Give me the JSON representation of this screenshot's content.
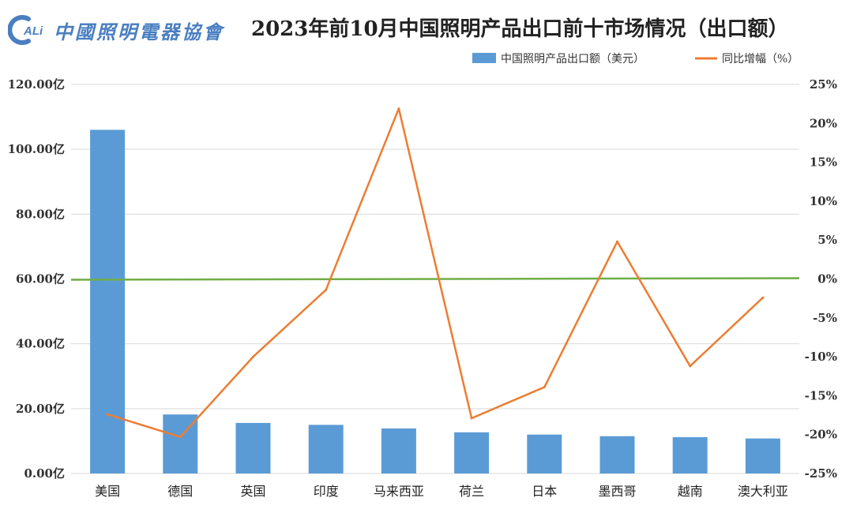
{
  "header": {
    "logo_text": "中國照明電器協會",
    "logo_mark": "ALi",
    "title": "2023年前10月中国照明产品出口前十市场情况（出口额）"
  },
  "chart_data": {
    "type": "bar",
    "title": "2023年前10月中国照明产品出口前十市场情况（出口额）",
    "categories": [
      "美国",
      "德国",
      "英国",
      "印度",
      "马来西亚",
      "荷兰",
      "日本",
      "墨西哥",
      "越南",
      "澳大利亚"
    ],
    "series": [
      {
        "name": "中国照明产品出口额（美元）",
        "type": "bar",
        "axis": "left",
        "color": "#5b9bd5",
        "values": [
          106.0,
          18.2,
          15.6,
          15.0,
          13.9,
          12.7,
          12.0,
          11.5,
          11.2,
          10.8
        ]
      },
      {
        "name": "同比增幅（%）",
        "type": "line",
        "axis": "right",
        "color": "#ed7d31",
        "values": [
          -17.4,
          -20.3,
          -10.0,
          -1.4,
          21.9,
          -17.9,
          -13.9,
          4.8,
          -11.2,
          -2.4
        ]
      }
    ],
    "y_left": {
      "ylim": [
        0,
        120
      ],
      "ticks": [
        0,
        20,
        40,
        60,
        80,
        100,
        120
      ],
      "tick_labels": [
        "0.00亿",
        "20.00亿",
        "40.00亿",
        "60.00亿",
        "80.00亿",
        "100.00亿",
        "120.00亿"
      ]
    },
    "y_right": {
      "ylim": [
        -25,
        25
      ],
      "ticks": [
        -25,
        -20,
        -15,
        -10,
        -5,
        0,
        5,
        10,
        15,
        20,
        25
      ],
      "tick_labels": [
        "-25%",
        "-20%",
        "-15%",
        "-10%",
        "-5%",
        "0%",
        "5%",
        "10%",
        "15%",
        "20%",
        "25%"
      ]
    },
    "reference_line": {
      "axis": "right",
      "value": 0,
      "color": "#70ad47"
    },
    "grid": true,
    "legend_position": "top-right"
  }
}
